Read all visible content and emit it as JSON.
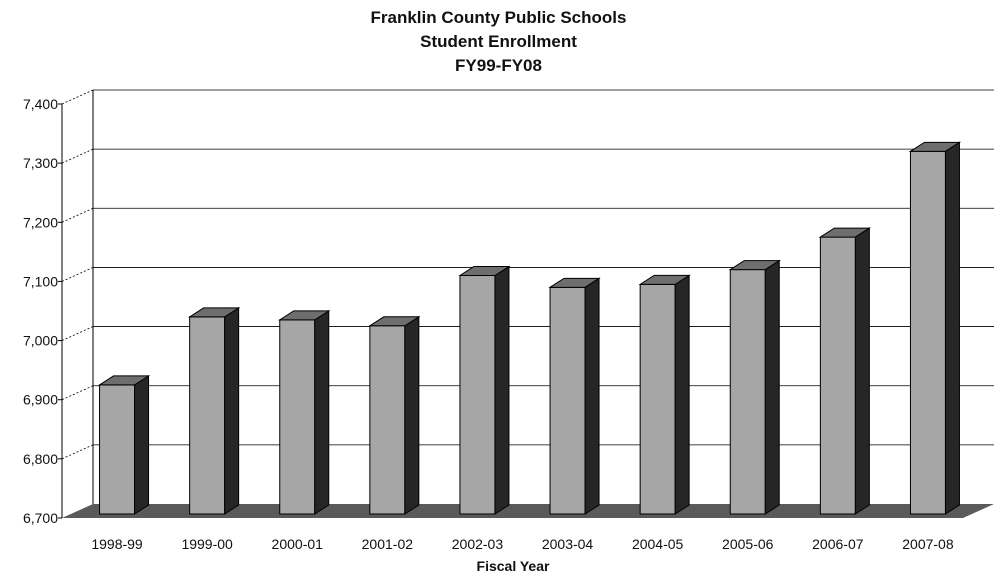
{
  "chart_data": {
    "type": "bar",
    "title": [
      "Franklin County Public Schools",
      "Student Enrollment",
      "FY99-FY08"
    ],
    "xlabel": "Fiscal Year",
    "ylabel": "",
    "categories": [
      "1998-99",
      "1999-00",
      "2000-01",
      "2001-02",
      "2002-03",
      "2003-04",
      "2004-05",
      "2005-06",
      "2006-07",
      "2007-08"
    ],
    "values": [
      6925,
      7040,
      7035,
      7025,
      7110,
      7090,
      7095,
      7120,
      7175,
      7320
    ],
    "ylim": [
      6700,
      7400
    ],
    "yticks": [
      "6,700",
      "6,800",
      "6,900",
      "7,000",
      "7,100",
      "7,200",
      "7,300",
      "7,400"
    ],
    "ytick_values": [
      6700,
      6800,
      6900,
      7000,
      7100,
      7200,
      7300,
      7400
    ],
    "grid": true,
    "style": "3d-column",
    "colors": {
      "bar_front": "#a6a6a6",
      "bar_side": "#262626",
      "bar_top": "#6e6e6e",
      "floor": "#5a5a5a",
      "grid": "#000000"
    }
  }
}
